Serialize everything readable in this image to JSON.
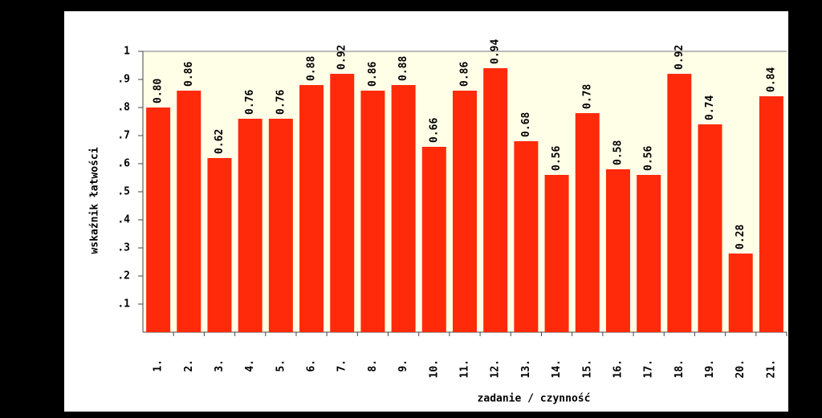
{
  "chart_data": {
    "type": "bar",
    "categories": [
      "1.",
      "2.",
      "3.",
      "4.",
      "5.",
      "6.",
      "7.",
      "8.",
      "9.",
      "10.",
      "11.",
      "12.",
      "13.",
      "14.",
      "15.",
      "16.",
      "17.",
      "18.",
      "19.",
      "20.",
      "21."
    ],
    "values": [
      0.8,
      0.86,
      0.62,
      0.76,
      0.76,
      0.88,
      0.92,
      0.86,
      0.88,
      0.66,
      0.86,
      0.94,
      0.68,
      0.56,
      0.78,
      0.58,
      0.56,
      0.92,
      0.74,
      0.28,
      0.84
    ],
    "value_labels": [
      "0.80",
      "0.86",
      "0.62",
      "0.76",
      "0.76",
      "0.88",
      "0.92",
      "0.86",
      "0.88",
      "0.66",
      "0.86",
      "0.94",
      "0.68",
      "0.56",
      "0.78",
      "0.58",
      "0.56",
      "0.92",
      "0.74",
      "0.28",
      "0.84"
    ],
    "color": "#ff2a0a",
    "ylim": [
      0,
      1
    ],
    "yticks": [
      {
        "value": 0.1,
        "label": ".1"
      },
      {
        "value": 0.2,
        "label": ".2"
      },
      {
        "value": 0.3,
        "label": ".3"
      },
      {
        "value": 0.4,
        "label": ".4"
      },
      {
        "value": 0.5,
        "label": ".5"
      },
      {
        "value": 0.6,
        "label": ".6"
      },
      {
        "value": 0.7,
        "label": ".7"
      },
      {
        "value": 0.8,
        "label": ".8"
      },
      {
        "value": 0.9,
        "label": ".9"
      },
      1
    ],
    "xlabel": "zadanie / czynność",
    "ylabel": "wskaźnik łatwości"
  }
}
